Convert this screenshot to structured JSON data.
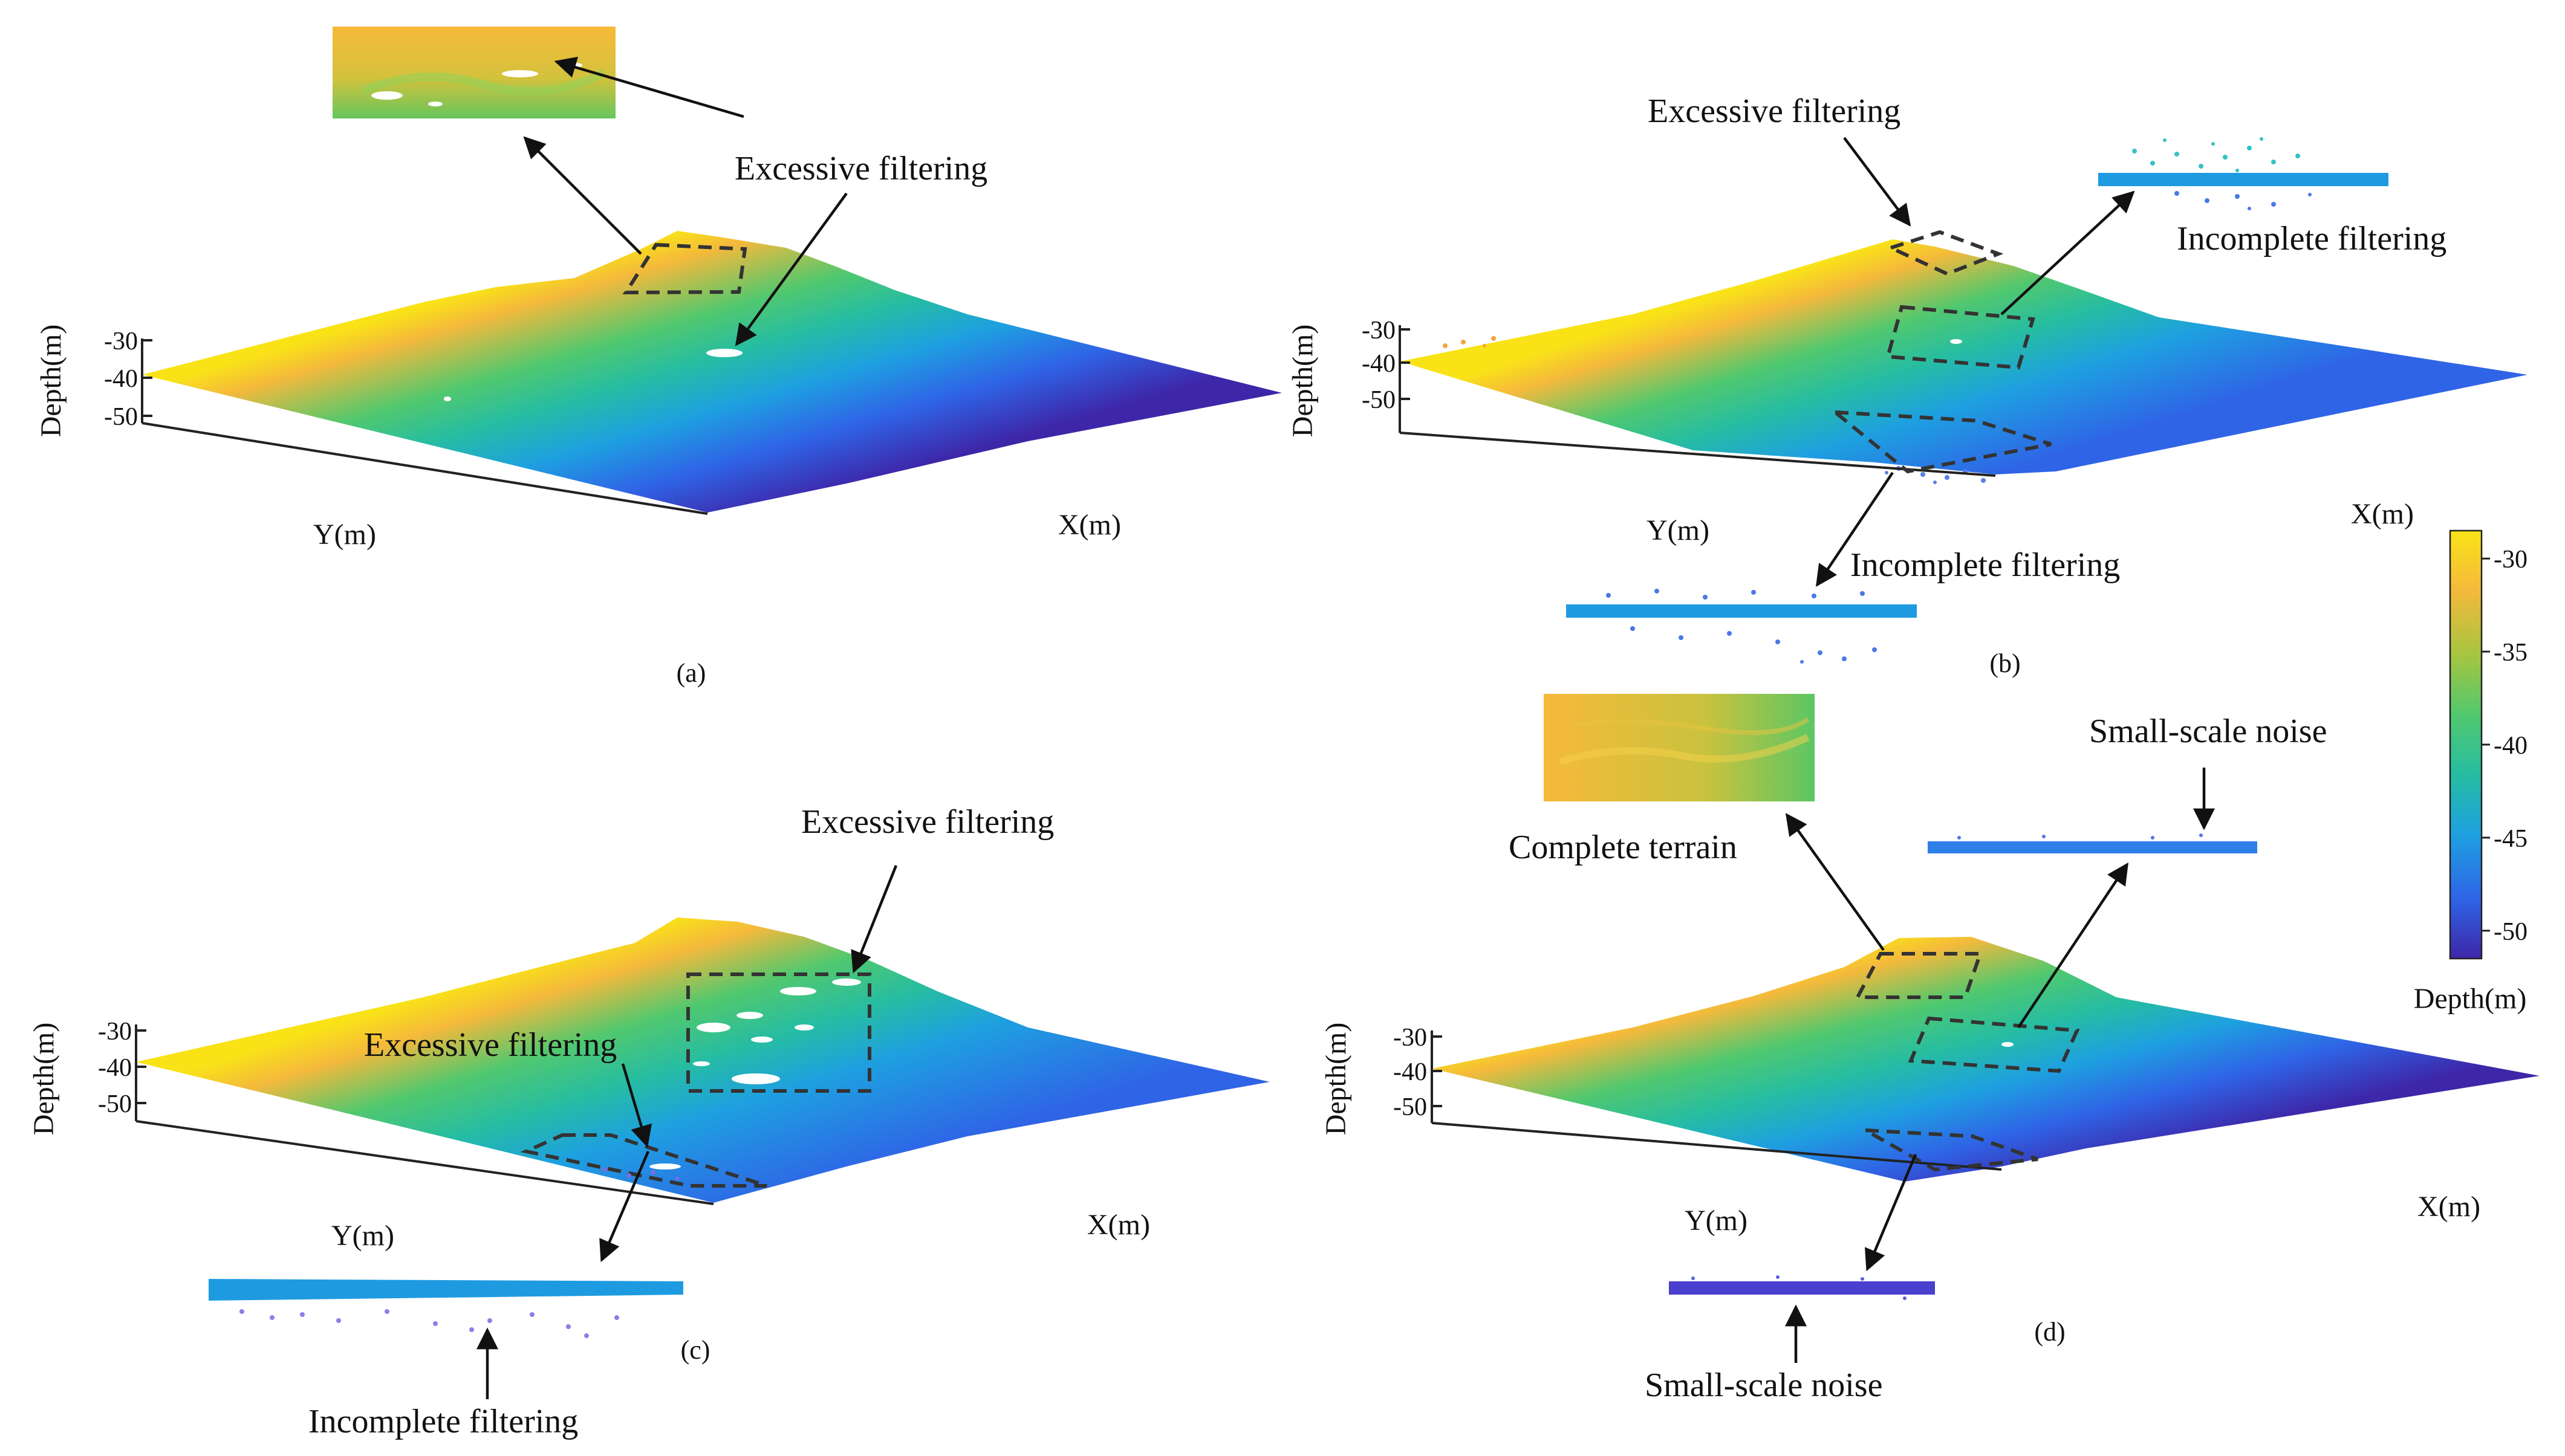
{
  "colorbar": {
    "label": "Depth(m)",
    "ticks": [
      "-30",
      "-35",
      "-40",
      "-45",
      "-50"
    ],
    "tick_values": [
      -30,
      -35,
      -40,
      -45,
      -50
    ],
    "range": [
      -51.5,
      -28.5
    ],
    "colormap": "parula",
    "colors": [
      "#3e26a8",
      "#2f64e6",
      "#1ea0e0",
      "#26bda2",
      "#52c86e",
      "#a6c540",
      "#f4b93c",
      "#f9e317"
    ]
  },
  "axes": {
    "depth_label": "Depth(m)",
    "depth_ticks": [
      "-30",
      "-40",
      "-50"
    ],
    "x_label": "X(m)",
    "y_label": "Y(m)"
  },
  "panels": [
    {
      "caption": "(a)",
      "annotations": [
        "Excessive filtering"
      ]
    },
    {
      "caption": "(b)",
      "annotations": [
        "Excessive filtering",
        "Incomplete filtering",
        "Incomplete filtering"
      ]
    },
    {
      "caption": "(c)",
      "annotations": [
        "Excessive filtering",
        "Excessive filtering",
        "Incomplete filtering"
      ]
    },
    {
      "caption": "(d)",
      "annotations": [
        "Complete terrain",
        "Small-scale noise",
        "Small-scale noise"
      ]
    }
  ]
}
